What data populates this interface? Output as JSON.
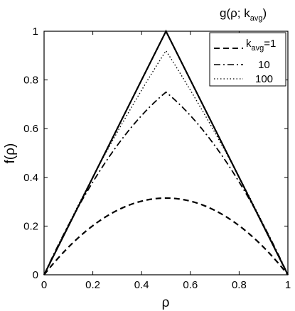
{
  "chart_data": {
    "type": "line",
    "xlabel": "ρ",
    "ylabel": "f(ρ)",
    "xlim": [
      0,
      1
    ],
    "ylim": [
      0,
      1
    ],
    "x_ticks": [
      "0",
      "0.2",
      "0.4",
      "0.6",
      "0.8",
      "1"
    ],
    "y_ticks": [
      "0",
      "0.2",
      "0.4",
      "0.6",
      "0.8",
      "1"
    ],
    "grid": false,
    "legend_title": {
      "main": "g(ρ; k",
      "sub": "avg",
      "close": ")"
    },
    "legend_placement": "top-right",
    "legend_entries": [
      {
        "prefix": "k",
        "sub": "avg",
        "suffix": "=1",
        "style": "dashed"
      },
      {
        "prefix": "",
        "sub": "",
        "suffix": "10",
        "style": "dashdot"
      },
      {
        "prefix": "",
        "sub": "",
        "suffix": "100",
        "style": "dotted"
      }
    ],
    "series": [
      {
        "style": "solid",
        "peak": 1.0,
        "x": [
          0,
          0.5,
          1
        ],
        "values": [
          0,
          1.0,
          0
        ]
      },
      {
        "style": "dashed",
        "peak": 0.315,
        "x": [
          0,
          0.1,
          0.2,
          0.3,
          0.4,
          0.5,
          0.6,
          0.7,
          0.8,
          0.9,
          1
        ],
        "values": [
          0,
          0.115,
          0.205,
          0.27,
          0.305,
          0.315,
          0.305,
          0.27,
          0.205,
          0.115,
          0
        ]
      },
      {
        "style": "dashdot",
        "peak": 0.75,
        "x": [
          0,
          0.1,
          0.2,
          0.3,
          0.4,
          0.5,
          0.6,
          0.7,
          0.8,
          0.9,
          1
        ],
        "values": [
          0,
          0.19,
          0.38,
          0.56,
          0.7,
          0.75,
          0.7,
          0.56,
          0.38,
          0.19,
          0
        ]
      },
      {
        "style": "dotted",
        "peak": 0.92,
        "x": [
          0,
          0.1,
          0.2,
          0.3,
          0.4,
          0.5,
          0.6,
          0.7,
          0.8,
          0.9,
          1
        ],
        "values": [
          0,
          0.2,
          0.4,
          0.6,
          0.8,
          0.92,
          0.8,
          0.6,
          0.4,
          0.2,
          0
        ]
      }
    ]
  }
}
